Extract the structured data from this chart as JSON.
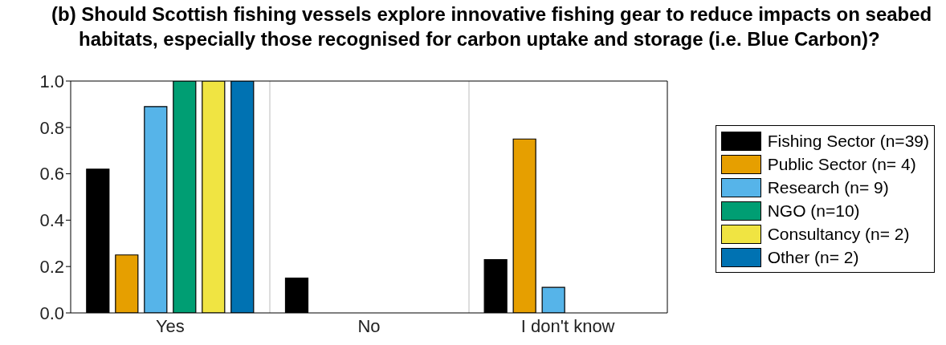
{
  "chart_data": {
    "type": "bar",
    "title": "(b) Should Scottish fishing vessels explore innovative fishing gear to reduce impacts on seabed habitats, especially those recognised for carbon uptake and storage (i.e. Blue Carbon)?",
    "categories": [
      "Yes",
      "No",
      "I don't know"
    ],
    "series": [
      {
        "name": "Fishing Sector (n=39)",
        "color": "#000000",
        "values": [
          0.62,
          0.15,
          0.23
        ]
      },
      {
        "name": "Public Sector (n= 4)",
        "color": "#e69f00",
        "values": [
          0.25,
          0,
          0.75
        ]
      },
      {
        "name": "Research (n= 9)",
        "color": "#56b4e9",
        "values": [
          0.89,
          0,
          0.11
        ]
      },
      {
        "name": "NGO (n=10)",
        "color": "#009e73",
        "values": [
          1,
          0,
          0
        ]
      },
      {
        "name": "Consultancy (n= 2)",
        "color": "#f0e442",
        "values": [
          1,
          0,
          0
        ]
      },
      {
        "name": "Other (n= 2)",
        "color": "#0072b2",
        "values": [
          1,
          0,
          0
        ]
      }
    ],
    "ylim": [
      0,
      1
    ],
    "yticks": [
      {
        "value": 0,
        "label": "0.0"
      },
      {
        "value": 0.2,
        "label": "0.2"
      },
      {
        "value": 0.4,
        "label": "0.4"
      },
      {
        "value": 0.6,
        "label": "0.6"
      },
      {
        "value": 0.8,
        "label": "0.8"
      },
      {
        "value": 1,
        "label": "1.0"
      }
    ],
    "grid": "x",
    "legend": "right"
  }
}
